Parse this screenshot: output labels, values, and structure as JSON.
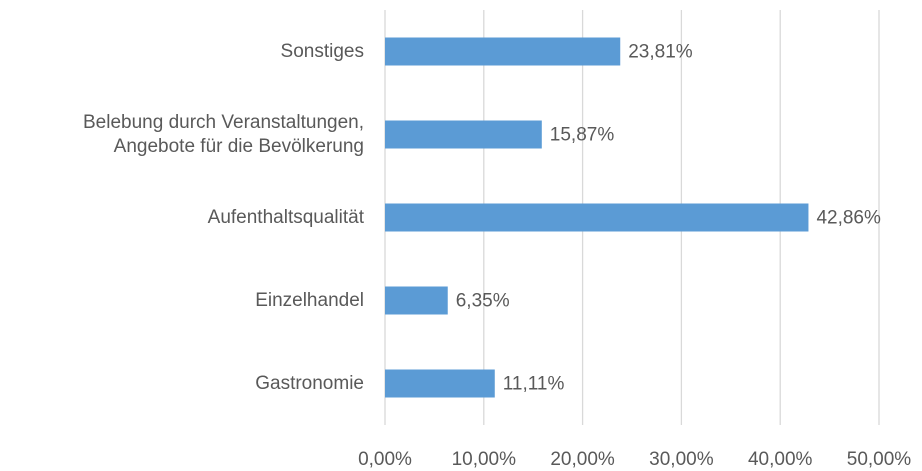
{
  "chart_data": {
    "type": "bar",
    "orientation": "horizontal",
    "categories": [
      "Sonstiges",
      "Belebung durch Veranstaltungen,\nAngebote für die Bevölkerung",
      "Aufenthaltsqualität",
      "Einzelhandel",
      "Gastronomie"
    ],
    "values": [
      23.81,
      15.87,
      42.86,
      6.35,
      11.11
    ],
    "value_labels": [
      "23,81%",
      "15,87%",
      "42,86%",
      "6,35%",
      "11,11%"
    ],
    "color": "#5b9bd5",
    "xlim": [
      0,
      50
    ],
    "xticks": [
      {
        "value": 0,
        "label": "0,00%"
      },
      {
        "value": 10,
        "label": "10,00%"
      },
      {
        "value": 20,
        "label": "20,00%"
      },
      {
        "value": 30,
        "label": "30,00%"
      },
      {
        "value": 40,
        "label": "40,00%"
      },
      {
        "value": 50,
        "label": "50,00%"
      }
    ],
    "grid": true
  }
}
